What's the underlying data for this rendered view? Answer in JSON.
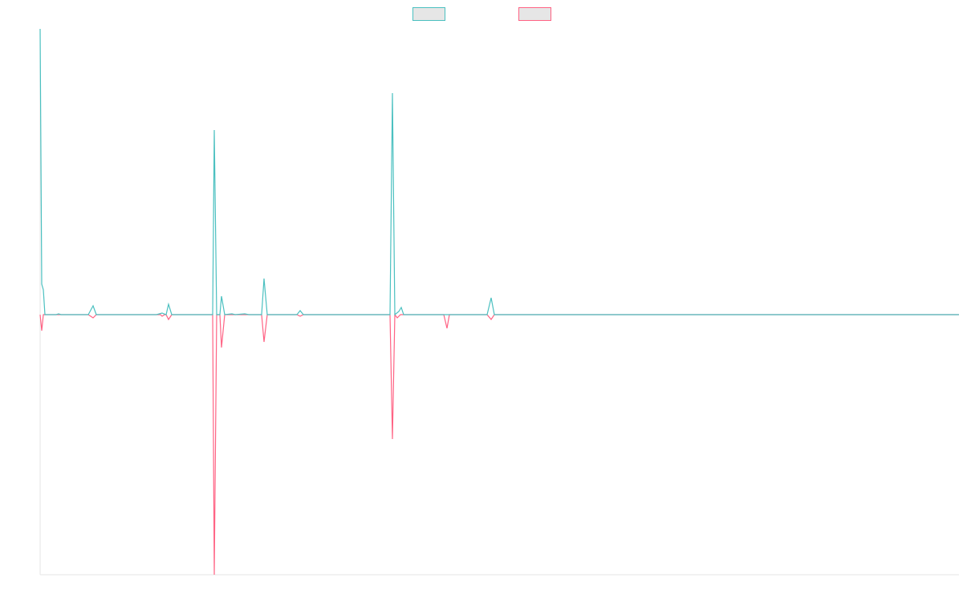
{
  "chart_data": {
    "type": "line",
    "title": "",
    "xlabel": "",
    "ylabel": "",
    "x_range": [
      0,
      1145
    ],
    "y_range": [
      -324,
      356
    ],
    "grid": false,
    "legend": "top-center",
    "series": [
      {
        "name": "",
        "color": "#4bc0c0",
        "points": [
          [
            0,
            356
          ],
          [
            2,
            38
          ],
          [
            4,
            31
          ],
          [
            6,
            0
          ],
          [
            20,
            0
          ],
          [
            23,
            1
          ],
          [
            26,
            0
          ],
          [
            60,
            0
          ],
          [
            66,
            11
          ],
          [
            70,
            0
          ],
          [
            145,
            0
          ],
          [
            152,
            2
          ],
          [
            157,
            0
          ],
          [
            160,
            13
          ],
          [
            164,
            0
          ],
          [
            215,
            0
          ],
          [
            217,
            230
          ],
          [
            220,
            0
          ],
          [
            224,
            0
          ],
          [
            226,
            23
          ],
          [
            230,
            0
          ],
          [
            239,
            1
          ],
          [
            243,
            0
          ],
          [
            255,
            1
          ],
          [
            260,
            0
          ],
          [
            276,
            0
          ],
          [
            279,
            45
          ],
          [
            283,
            0
          ],
          [
            320,
            0
          ],
          [
            324,
            5
          ],
          [
            328,
            0
          ],
          [
            436,
            0
          ],
          [
            439,
            276
          ],
          [
            442,
            0
          ],
          [
            447,
            4
          ],
          [
            450,
            9
          ],
          [
            453,
            0
          ],
          [
            557,
            0
          ],
          [
            562,
            21
          ],
          [
            566,
            0
          ],
          [
            1145,
            0
          ]
        ]
      },
      {
        "name": "",
        "color": "#ff6384",
        "points": [
          [
            0,
            0
          ],
          [
            2,
            -20
          ],
          [
            4,
            0
          ],
          [
            60,
            0
          ],
          [
            66,
            -4
          ],
          [
            70,
            0
          ],
          [
            150,
            0
          ],
          [
            152,
            -2
          ],
          [
            155,
            0
          ],
          [
            157,
            0
          ],
          [
            160,
            -6
          ],
          [
            164,
            0
          ],
          [
            215,
            0
          ],
          [
            217,
            -324
          ],
          [
            220,
            0
          ],
          [
            224,
            0
          ],
          [
            226,
            -41
          ],
          [
            230,
            0
          ],
          [
            276,
            0
          ],
          [
            279,
            -34
          ],
          [
            283,
            0
          ],
          [
            320,
            0
          ],
          [
            324,
            -2
          ],
          [
            328,
            0
          ],
          [
            436,
            0
          ],
          [
            439,
            -155
          ],
          [
            442,
            0
          ],
          [
            445,
            -4
          ],
          [
            449,
            0
          ],
          [
            503,
            0
          ],
          [
            507,
            -17
          ],
          [
            510,
            0
          ],
          [
            557,
            0
          ],
          [
            562,
            -6
          ],
          [
            566,
            0
          ],
          [
            1145,
            0
          ]
        ]
      }
    ]
  }
}
